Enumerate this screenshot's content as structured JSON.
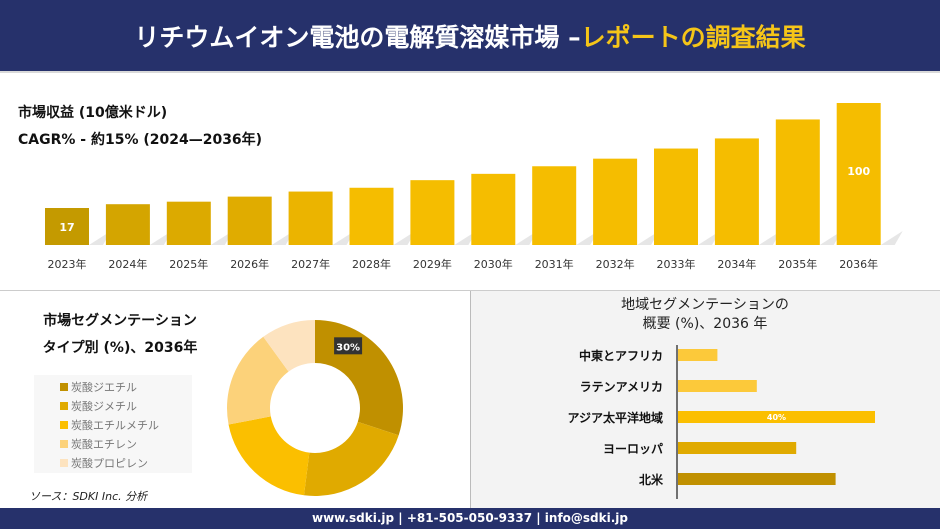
{
  "header": {
    "title_main": "リチウムイオン電池の電解質溶媒市場 –",
    "title_highlight": "レポートの調査結果"
  },
  "info": {
    "revenue_label": "市場収益 (10億米ドル)",
    "cagr_label": "CAGR% - 約15% (2024—2036年)"
  },
  "colors": {
    "navy": "#26316b",
    "accent": "#f5c518"
  },
  "chart_data": [
    {
      "type": "bar",
      "categories": [
        "2023年",
        "2024年",
        "2025年",
        "2026年",
        "2027年",
        "2028年",
        "2029年",
        "2030年",
        "2031年",
        "2032年",
        "2033年",
        "2034年",
        "2035年",
        "2036年"
      ],
      "values": [
        17,
        20,
        22,
        26,
        30,
        33,
        39,
        44,
        50,
        56,
        64,
        72,
        87,
        100
      ],
      "data_labels": {
        "0": "17",
        "13": "100"
      },
      "colors": [
        "#c49a00",
        "#d4a500",
        "#dcaa00",
        "#e0ac00",
        "#ebb400",
        "#f5bd00",
        "#f5bd00",
        "#f5bd00",
        "#f5bd00",
        "#f5bd00",
        "#f5bd00",
        "#f5bd00",
        "#f5bd00",
        "#f5bd00"
      ]
    },
    {
      "type": "pie",
      "title": "市場セグメンテーション タイプ別 (%)、2036年",
      "title_lines": [
        "市場セグメンテーション",
        "タイプ別 (%)、2036年"
      ],
      "labels": [
        "炭酸ジエチル",
        "炭酸ジメチル",
        "炭酸エチルメチル",
        "炭酸エチレン",
        "炭酸プロピレン"
      ],
      "values": [
        30,
        22,
        20,
        18,
        10
      ],
      "data_labels": {
        "0": "30%"
      },
      "colors": [
        "#c09000",
        "#e0aa00",
        "#fbbf00",
        "#fcd27a",
        "#fde3bf"
      ]
    },
    {
      "type": "bar",
      "orientation": "horizontal",
      "title_lines": [
        "地域セグメンテーションの",
        "概要 (%)、2036 年"
      ],
      "categories": [
        "中東とアフリカ",
        "ラテンアメリカ",
        "アジア太平洋地域",
        "ヨーロッパ",
        "北米"
      ],
      "values": [
        8,
        16,
        40,
        24,
        32
      ],
      "data_labels": {
        "2": "40%"
      },
      "colors": [
        "#fcc93a",
        "#fcc93a",
        "#fbbf00",
        "#e0aa00",
        "#c09000"
      ]
    }
  ],
  "source": "ソース：SDKI Inc. 分析",
  "footer": "www.sdki.jp | +81-505-050-9337 | info@sdki.jp"
}
